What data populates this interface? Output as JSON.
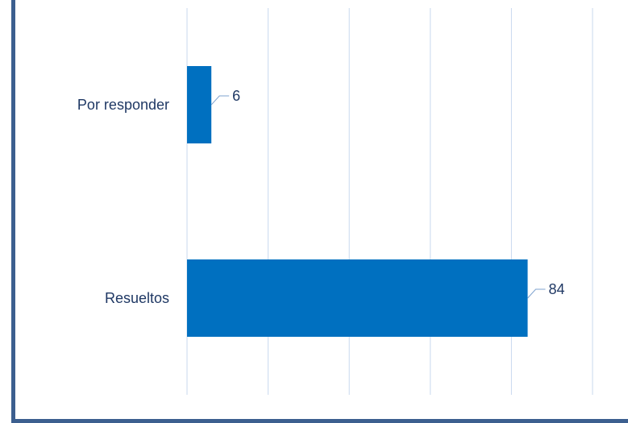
{
  "colors": {
    "bar": "#0070c0",
    "grid": "#c9d9ee",
    "border": "#3c5f8f",
    "text": "#1f3864",
    "leader": "#7fa3cf"
  },
  "chart_data": {
    "type": "bar",
    "orientation": "horizontal",
    "categories": [
      "Por responder",
      "Resueltos"
    ],
    "values": [
      6,
      84
    ],
    "title": "",
    "xlabel": "",
    "ylabel": "",
    "xlim": [
      0,
      100
    ],
    "grid": true,
    "data_labels": true
  }
}
